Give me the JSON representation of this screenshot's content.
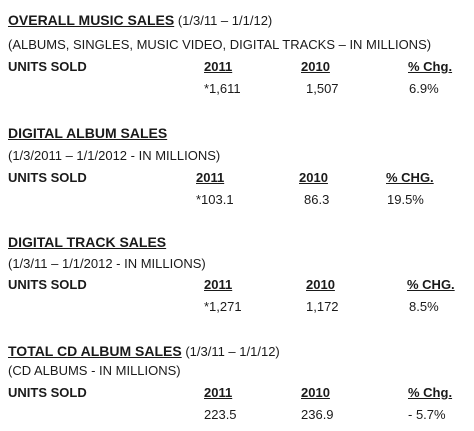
{
  "sections": [
    {
      "title": "OVERALL MUSIC SALES",
      "period": " (1/3/11 – 1/1/12)",
      "subtitle": "(ALBUMS, SINGLES, MUSIC VIDEO, DIGITAL TRACKS – IN MILLIONS)",
      "row_label": "UNITS SOLD",
      "col_2011": "2011",
      "col_2010": "2010",
      "col_chg": "% Chg.",
      "val_2011": "*1,611",
      "val_2010": "1,507",
      "val_chg": "6.9%"
    },
    {
      "title": "DIGITAL ALBUM SALES",
      "period": "",
      "subtitle": "(1/3/2011 – 1/1/2012 - IN MILLIONS)",
      "row_label": "UNITS SOLD",
      "col_2011": "2011",
      "col_2010": "2010",
      "col_chg": "% CHG.",
      "val_2011": "*103.1",
      "val_2010": "86.3",
      "val_chg": "19.5%"
    },
    {
      "title": "DIGITAL TRACK SALES",
      "period": "",
      "subtitle": "(1/3/11 – 1/1/2012 - IN MILLIONS)",
      "row_label": "UNITS SOLD",
      "col_2011": "2011",
      "col_2010": "2010",
      "col_chg": "% CHG.",
      "val_2011": "*1,271",
      "val_2010": "1,172",
      "val_chg": "8.5%"
    },
    {
      "title": "TOTAL CD ALBUM SALES",
      "period": " (1/3/11 – 1/1/12)",
      "subtitle": "(CD ALBUMS - IN MILLIONS)",
      "row_label": "UNITS SOLD",
      "col_2011": "2011",
      "col_2010": "2010",
      "col_chg": "% Chg.",
      "val_2011": "223.5",
      "val_2010": "236.9",
      "val_chg": "- 5.7%"
    }
  ]
}
